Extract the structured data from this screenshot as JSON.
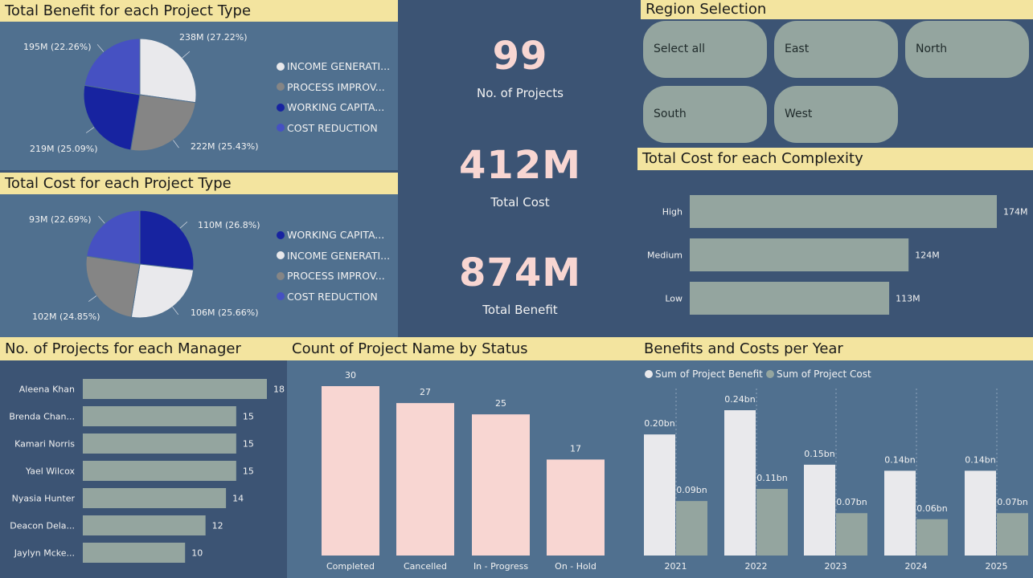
{
  "colors": {
    "header_bg": "#f3e49f",
    "panel_light": "#50708f",
    "panel_dark": "#3c5474",
    "bar_gray": "#94a59f",
    "bar_pink": "#f8d6d2",
    "kpi_text": "#f8d6d2",
    "white_slice": "#e9e9ec",
    "gray_slice": "#858585",
    "navy_slice": "#1723a0",
    "blue_slice": "#4651c2"
  },
  "benefit_pie": {
    "title": "Total Benefit for each Project Type",
    "labels": [
      "238M (27.22%)",
      "222M (25.43%)",
      "219M (25.09%)",
      "195M (22.26%)"
    ],
    "legend": [
      {
        "label": "INCOME GENERATI...",
        "color": "#e9e9ec"
      },
      {
        "label": "PROCESS IMPROV...",
        "color": "#858585"
      },
      {
        "label": "WORKING CAPITA...",
        "color": "#1723a0"
      },
      {
        "label": "COST REDUCTION",
        "color": "#4651c2"
      }
    ]
  },
  "cost_pie": {
    "title": "Total Cost for each Project Type",
    "labels": [
      "110M (26.8%)",
      "106M (25.66%)",
      "102M (24.85%)",
      "93M (22.69%)"
    ],
    "legend": [
      {
        "label": "WORKING CAPITA...",
        "color": "#1723a0"
      },
      {
        "label": "INCOME GENERATI...",
        "color": "#e9e9ec"
      },
      {
        "label": "PROCESS IMPROV...",
        "color": "#858585"
      },
      {
        "label": "COST REDUCTION",
        "color": "#4651c2"
      }
    ]
  },
  "kpis": [
    {
      "value": "99",
      "caption": "No. of Projects"
    },
    {
      "value": "412M",
      "caption": "Total Cost"
    },
    {
      "value": "874M",
      "caption": "Total Benefit"
    }
  ],
  "region": {
    "title": "Region Selection",
    "options": [
      "Select all",
      "East",
      "North",
      "South",
      "West"
    ]
  },
  "complexity": {
    "title": "Total Cost for each Complexity"
  },
  "managers": {
    "title": "No. of Projects for each Manager"
  },
  "status": {
    "title": "Count of Project Name by Status"
  },
  "yearly": {
    "title": "Benefits and Costs per Year"
  },
  "chart_data": [
    {
      "type": "pie",
      "title": "Total Benefit for each Project Type",
      "categories": [
        "INCOME GENERATION",
        "PROCESS IMPROVEMENT",
        "WORKING CAPITAL",
        "COST REDUCTION"
      ],
      "values": [
        238,
        222,
        219,
        195
      ],
      "percentages": [
        27.22,
        25.43,
        25.09,
        22.26
      ],
      "unit": "M"
    },
    {
      "type": "pie",
      "title": "Total Cost for each Project Type",
      "categories": [
        "WORKING CAPITAL",
        "INCOME GENERATION",
        "PROCESS IMPROVEMENT",
        "COST REDUCTION"
      ],
      "values": [
        110,
        106,
        102,
        93
      ],
      "percentages": [
        26.8,
        25.66,
        24.85,
        22.69
      ],
      "unit": "M"
    },
    {
      "type": "bar",
      "orientation": "horizontal",
      "title": "Total Cost for each Complexity",
      "categories": [
        "High",
        "Medium",
        "Low"
      ],
      "values": [
        174,
        124,
        113
      ],
      "labels": [
        "174M",
        "124M",
        "113M"
      ],
      "xlim": [
        0,
        174
      ]
    },
    {
      "type": "bar",
      "orientation": "horizontal",
      "title": "No. of Projects for each Manager",
      "categories": [
        "Aleena Khan",
        "Brenda Chan...",
        "Kamari Norris",
        "Yael Wilcox",
        "Nyasia Hunter",
        "Deacon Dela...",
        "Jaylyn Mcke..."
      ],
      "values": [
        18,
        15,
        15,
        15,
        14,
        12,
        10
      ],
      "xlim": [
        0,
        18
      ]
    },
    {
      "type": "bar",
      "title": "Count of Project Name by Status",
      "categories": [
        "Completed",
        "Cancelled",
        "In - Progress",
        "On - Hold"
      ],
      "values": [
        30,
        27,
        25,
        17
      ],
      "ylim": [
        0,
        30
      ]
    },
    {
      "type": "bar",
      "title": "Benefits and Costs per Year",
      "categories": [
        "2021",
        "2022",
        "2023",
        "2024",
        "2025"
      ],
      "series": [
        {
          "name": "Sum of Project Benefit",
          "values": [
            0.2,
            0.24,
            0.15,
            0.14,
            0.14
          ],
          "labels": [
            "0.20bn",
            "0.24bn",
            "0.15bn",
            "0.14bn",
            "0.14bn"
          ],
          "color": "#e9e9ec"
        },
        {
          "name": "Sum of Project Cost",
          "values": [
            0.09,
            0.11,
            0.07,
            0.06,
            0.07
          ],
          "labels": [
            "0.09bn",
            "0.11bn",
            "0.07bn",
            "0.06bn",
            "0.07bn"
          ],
          "color": "#94a59f"
        }
      ],
      "ylim": [
        0,
        0.24
      ],
      "legend_position": "top-left"
    }
  ]
}
